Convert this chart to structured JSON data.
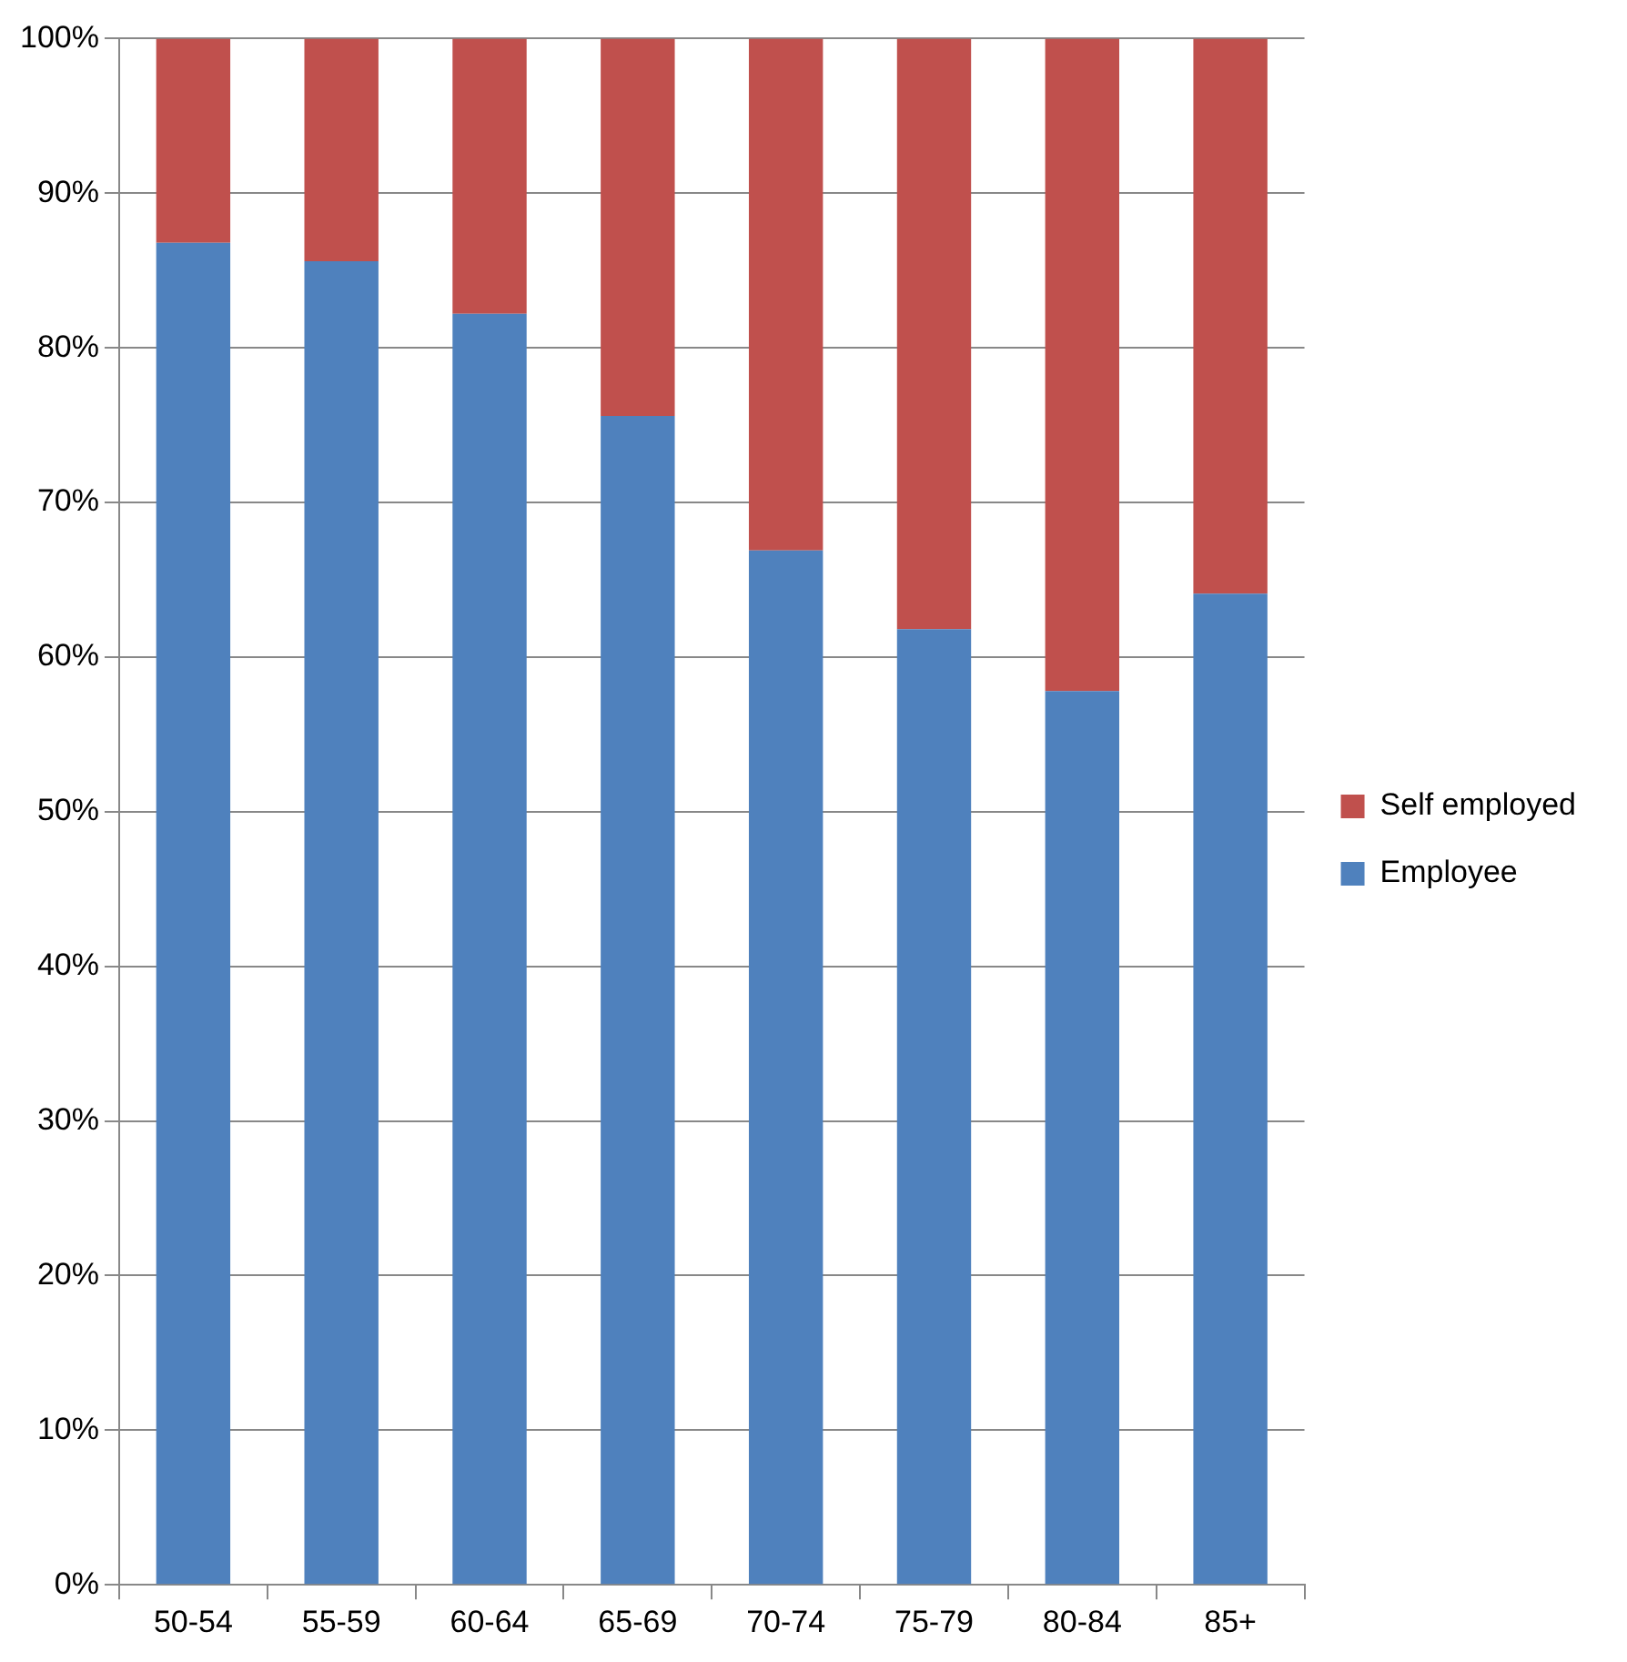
{
  "chart_data": {
    "type": "bar",
    "stacked": true,
    "categories": [
      "50-54",
      "55-59",
      "60-64",
      "65-69",
      "70-74",
      "75-79",
      "80-84",
      "85+"
    ],
    "series": [
      {
        "name": "Employee",
        "color": "#4f81bd",
        "values": [
          86.8,
          85.6,
          82.2,
          75.6,
          66.9,
          61.8,
          57.8,
          64.1
        ]
      },
      {
        "name": "Self employed",
        "color": "#c0504d",
        "values": [
          13.2,
          14.4,
          17.8,
          24.4,
          33.1,
          38.2,
          42.2,
          35.9
        ]
      }
    ],
    "ylim": [
      0,
      100
    ],
    "yticks": [
      {
        "value": 0,
        "label": "0%"
      },
      {
        "value": 10,
        "label": "10%"
      },
      {
        "value": 20,
        "label": "20%"
      },
      {
        "value": 30,
        "label": "30%"
      },
      {
        "value": 40,
        "label": "40%"
      },
      {
        "value": 50,
        "label": "50%"
      },
      {
        "value": 60,
        "label": "60%"
      },
      {
        "value": 70,
        "label": "70%"
      },
      {
        "value": 80,
        "label": "80%"
      },
      {
        "value": 90,
        "label": "90%"
      },
      {
        "value": 100,
        "label": "100%"
      }
    ],
    "grid": "y",
    "legend": "right"
  }
}
